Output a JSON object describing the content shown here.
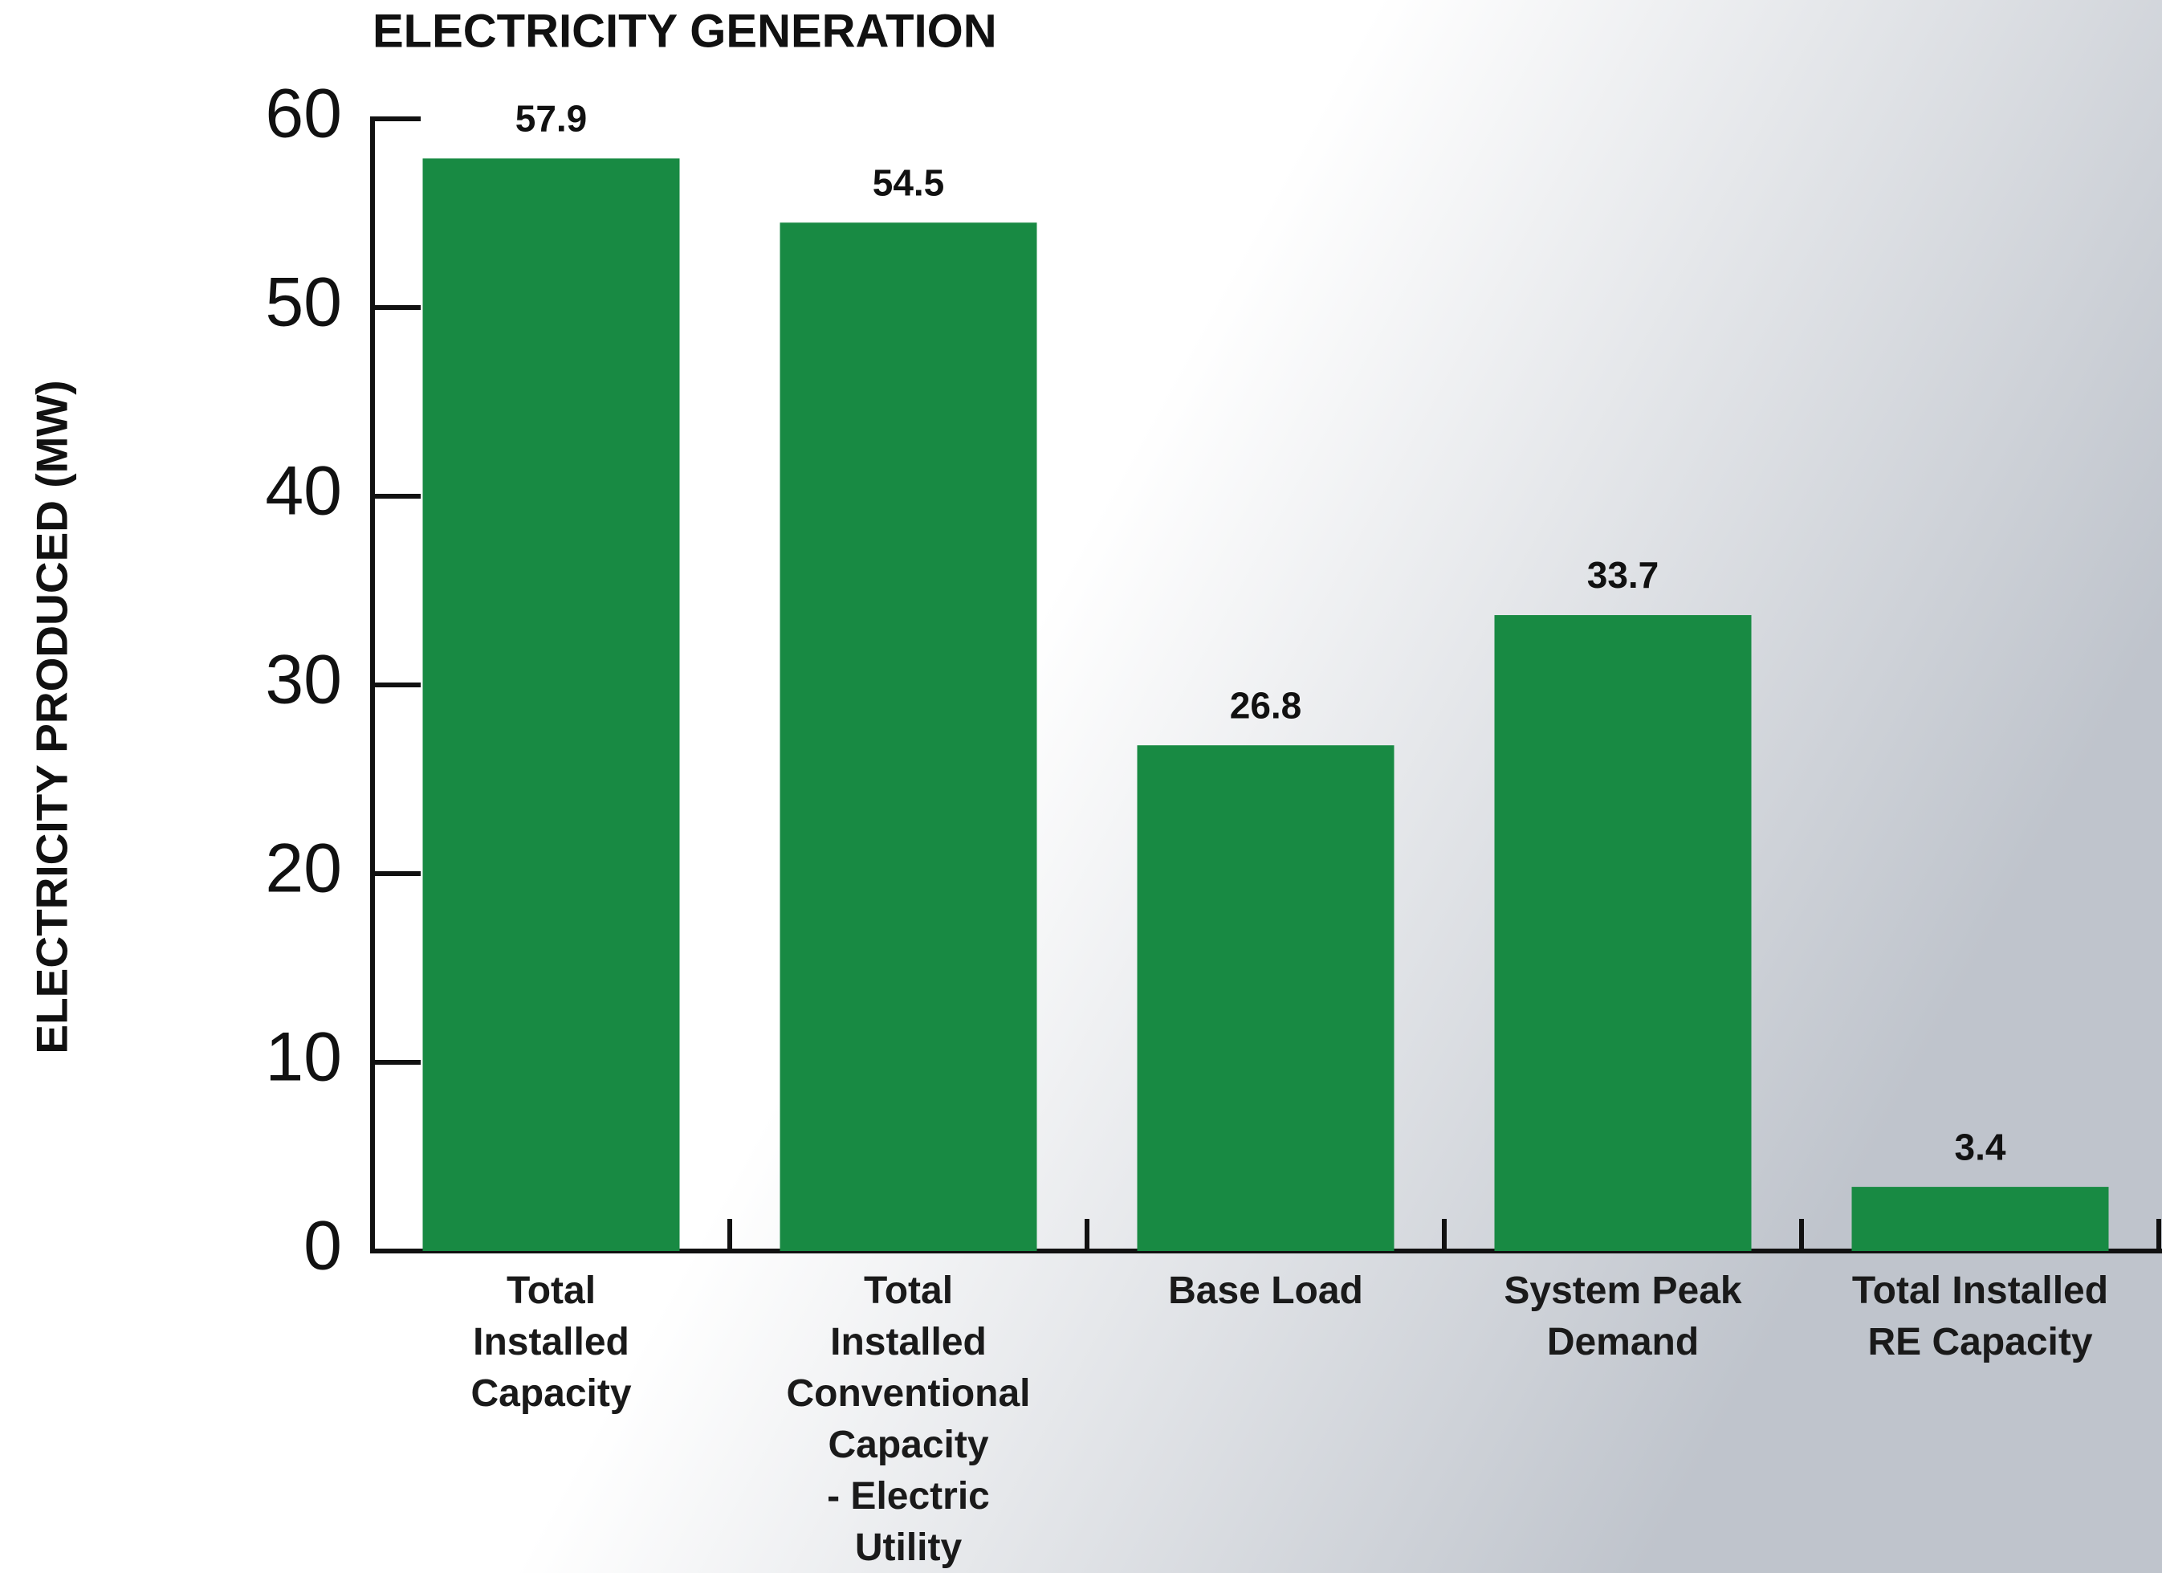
{
  "chart_data": {
    "type": "bar",
    "title": "ELECTRICITY GENERATION",
    "y_label": "ELECTRICITY PRODUCED (MW)",
    "categories": [
      "Total\nInstalled\nCapacity",
      "Total\nInstalled\nConventional\nCapacity\n- Electric\nUtility",
      "Base Load",
      "System Peak\nDemand",
      "Total Installed\nRE Capacity"
    ],
    "values": [
      57.9,
      54.5,
      26.8,
      33.7,
      3.4
    ],
    "color": "#188a43",
    "ylim": [
      0,
      60
    ],
    "yticks": [
      0,
      10,
      20,
      30,
      40,
      50,
      60
    ],
    "grid": false
  }
}
